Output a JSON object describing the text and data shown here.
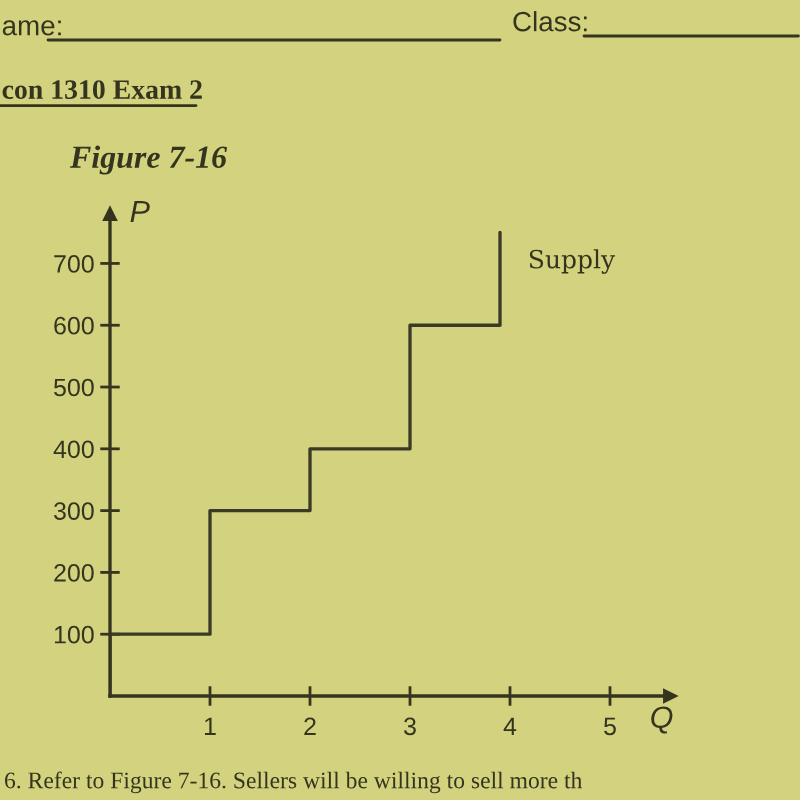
{
  "chart_data": {
    "type": "step",
    "title": "Figure 7-16",
    "xlabel": "Q",
    "ylabel": "P",
    "x": [
      0,
      0,
      1,
      2,
      3,
      3.9
    ],
    "series": [
      {
        "name": "Supply",
        "color": "#3b3a26",
        "values": [
          0,
          100,
          300,
          400,
          600,
          750
        ]
      }
    ],
    "xlim": [
      0,
      5.6
    ],
    "xticks": [
      1,
      2,
      3,
      4,
      5
    ],
    "ylim": [
      0,
      780
    ],
    "yticks": [
      100,
      200,
      300,
      400,
      500,
      600,
      700
    ],
    "annotations": [
      "ame:",
      "Class:",
      "con 1310 Exam 2",
      "6. Refer to Figure 7-16. Sellers will be willing to sell more th"
    ]
  }
}
